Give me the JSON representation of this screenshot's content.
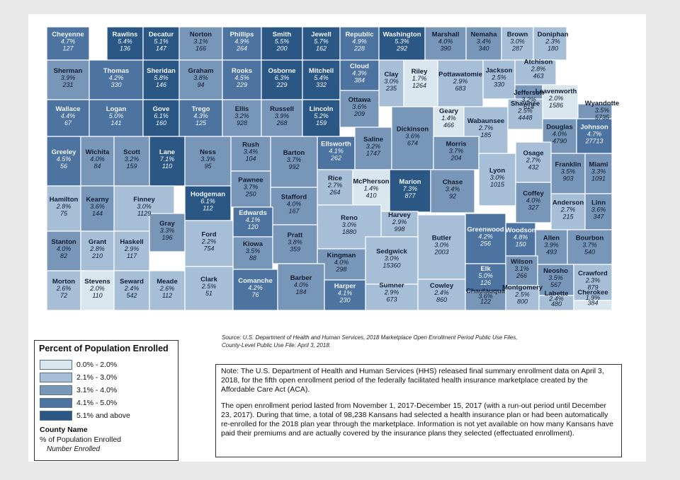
{
  "legend": {
    "title": "Percent of Population Enrolled",
    "bins": [
      {
        "label": "0.0% - 2.0%",
        "color": "#d9e6ee"
      },
      {
        "label": "2.1% - 3.0%",
        "color": "#a6bfd6"
      },
      {
        "label": "3.1% - 4.0%",
        "color": "#7896b7"
      },
      {
        "label": "4.1% - 5.0%",
        "color": "#4d73a0"
      },
      {
        "label": "5.1% and above",
        "color": "#2b5785"
      }
    ],
    "key_title": "County Name",
    "key_pct": "% of Population Enrolled",
    "key_num": "Number Enrolled"
  },
  "source": [
    "Source: U.S. Department of Health and Human Services, 2018 Marketplace Open Enrollment Period Public Use Files,",
    "County-Level Public Use File: April 3, 2018."
  ],
  "note": [
    "Note: The U.S. Department of Health and Human Services (HHS) released final summary enrollment data on April 3, 2018, for the fifth open enrollment period of the federally facilitated health insurance marketplace created by the Affordable Care Act (ACA).",
    "The open enrollment period lasted from November 1, 2017-December 15, 2017 (with a run-out period until December 23, 2017). During that time, a total of 98,238 Kansans had selected a health insurance plan or had been automatically re-enrolled for the 2018 plan year through the marketplace. Information is not yet available on how many Kansans have paid their premiums and are actually covered by the insurance plans they selected (effectuated enrollment)."
  ],
  "counties": [
    {
      "name": "Cheyenne",
      "pct": "4.7%",
      "n": "127",
      "bin": 3
    },
    {
      "name": "Rawlins",
      "pct": "5.4%",
      "n": "136",
      "bin": 4
    },
    {
      "name": "Decatur",
      "pct": "5.1%",
      "n": "147",
      "bin": 4
    },
    {
      "name": "Norton",
      "pct": "3.1%",
      "n": "166",
      "bin": 2
    },
    {
      "name": "Phillips",
      "pct": "4.9%",
      "n": "264",
      "bin": 3
    },
    {
      "name": "Smith",
      "pct": "5.5%",
      "n": "200",
      "bin": 4
    },
    {
      "name": "Jewell",
      "pct": "5.7%",
      "n": "162",
      "bin": 4
    },
    {
      "name": "Republic",
      "pct": "4.9%",
      "n": "228",
      "bin": 3
    },
    {
      "name": "Washington",
      "pct": "5.3%",
      "n": "292",
      "bin": 4
    },
    {
      "name": "Marshall",
      "pct": "4.0%",
      "n": "390",
      "bin": 2
    },
    {
      "name": "Nemaha",
      "pct": "3.4%",
      "n": "340",
      "bin": 2
    },
    {
      "name": "Brown",
      "pct": "3.0%",
      "n": "287",
      "bin": 1
    },
    {
      "name": "Doniphan",
      "pct": "2.3%",
      "n": "180",
      "bin": 1
    },
    {
      "name": "Sherman",
      "pct": "3.9%",
      "n": "231",
      "bin": 2
    },
    {
      "name": "Thomas",
      "pct": "4.2%",
      "n": "330",
      "bin": 3
    },
    {
      "name": "Sheridan",
      "pct": "5.8%",
      "n": "146",
      "bin": 4
    },
    {
      "name": "Graham",
      "pct": "3.8%",
      "n": "94",
      "bin": 2
    },
    {
      "name": "Rooks",
      "pct": "4.5%",
      "n": "229",
      "bin": 3
    },
    {
      "name": "Osborne",
      "pct": "6.3%",
      "n": "229",
      "bin": 4
    },
    {
      "name": "Mitchell",
      "pct": "5.4%",
      "n": "332",
      "bin": 4
    },
    {
      "name": "Cloud",
      "pct": "4.3%",
      "n": "384",
      "bin": 3
    },
    {
      "name": "Clay",
      "pct": "3.0%",
      "n": "235",
      "bin": 1
    },
    {
      "name": "Riley",
      "pct": "1.7%",
      "n": "1264",
      "bin": 0
    },
    {
      "name": "Pottawatomie",
      "pct": "2.9%",
      "n": "683",
      "bin": 1
    },
    {
      "name": "Jackson",
      "pct": "2.5%",
      "n": "330",
      "bin": 1
    },
    {
      "name": "Atchison",
      "pct": "2.8%",
      "n": "463",
      "bin": 1
    },
    {
      "name": "Jefferson",
      "pct": "3.2%",
      "n": "614",
      "bin": 2
    },
    {
      "name": "Leavenworth",
      "pct": "2.0%",
      "n": "1586",
      "bin": 0
    },
    {
      "name": "Wyandotte",
      "pct": "3.5%",
      "n": "5735",
      "bin": 2
    },
    {
      "name": "Wallace",
      "pct": "4.4%",
      "n": "67",
      "bin": 3
    },
    {
      "name": "Logan",
      "pct": "5.0%",
      "n": "141",
      "bin": 3
    },
    {
      "name": "Gove",
      "pct": "6.1%",
      "n": "160",
      "bin": 4
    },
    {
      "name": "Trego",
      "pct": "4.3%",
      "n": "125",
      "bin": 3
    },
    {
      "name": "Ellis",
      "pct": "3.2%",
      "n": "928",
      "bin": 2
    },
    {
      "name": "Russell",
      "pct": "3.9%",
      "n": "268",
      "bin": 2
    },
    {
      "name": "Lincoln",
      "pct": "5.2%",
      "n": "159",
      "bin": 4
    },
    {
      "name": "Ottawa",
      "pct": "3.6%",
      "n": "209",
      "bin": 2
    },
    {
      "name": "Geary",
      "pct": "1.4%",
      "n": "466",
      "bin": 0
    },
    {
      "name": "Wabaunsee",
      "pct": "2.7%",
      "n": "185",
      "bin": 1
    },
    {
      "name": "Shawnee",
      "pct": "2.5%",
      "n": "4448",
      "bin": 1
    },
    {
      "name": "Douglas",
      "pct": "4.0%",
      "n": "4790",
      "bin": 2
    },
    {
      "name": "Johnson",
      "pct": "4.7%",
      "n": "27713",
      "bin": 3
    },
    {
      "name": "Greeley",
      "pct": "4.5%",
      "n": "56",
      "bin": 3
    },
    {
      "name": "Wichita",
      "pct": "4.0%",
      "n": "84",
      "bin": 2
    },
    {
      "name": "Scott",
      "pct": "3.2%",
      "n": "159",
      "bin": 2
    },
    {
      "name": "Lane",
      "pct": "7.1%",
      "n": "110",
      "bin": 4
    },
    {
      "name": "Ness",
      "pct": "3.3%",
      "n": "95",
      "bin": 2
    },
    {
      "name": "Rush",
      "pct": "3.4%",
      "n": "104",
      "bin": 2
    },
    {
      "name": "Barton",
      "pct": "3.7%",
      "n": "992",
      "bin": 2
    },
    {
      "name": "Ellsworth",
      "pct": "4.1%",
      "n": "262",
      "bin": 3
    },
    {
      "name": "Saline",
      "pct": "3.2%",
      "n": "1747",
      "bin": 2
    },
    {
      "name": "Dickinson",
      "pct": "3.6%",
      "n": "674",
      "bin": 2
    },
    {
      "name": "Morris",
      "pct": "3.7%",
      "n": "204",
      "bin": 2
    },
    {
      "name": "Lyon",
      "pct": "3.0%",
      "n": "1015",
      "bin": 1
    },
    {
      "name": "Osage",
      "pct": "2.7%",
      "n": "432",
      "bin": 1
    },
    {
      "name": "Franklin",
      "pct": "3.5%",
      "n": "903",
      "bin": 2
    },
    {
      "name": "Miami",
      "pct": "3.3%",
      "n": "1091",
      "bin": 2
    },
    {
      "name": "Hamilton",
      "pct": "2.8%",
      "n": "75",
      "bin": 1
    },
    {
      "name": "Kearny",
      "pct": "3.6%",
      "n": "144",
      "bin": 2
    },
    {
      "name": "Finney",
      "pct": "3.0%",
      "n": "1129",
      "bin": 1
    },
    {
      "name": "Hodgeman",
      "pct": "6.1%",
      "n": "112",
      "bin": 4
    },
    {
      "name": "Pawnee",
      "pct": "3.7%",
      "n": "250",
      "bin": 2
    },
    {
      "name": "Stafford",
      "pct": "4.0%",
      "n": "167",
      "bin": 2
    },
    {
      "name": "Rice",
      "pct": "2.7%",
      "n": "264",
      "bin": 1
    },
    {
      "name": "McPherson",
      "pct": "1.4%",
      "n": "410",
      "bin": 0
    },
    {
      "name": "Marion",
      "pct": "7.3%",
      "n": "877",
      "bin": 4
    },
    {
      "name": "Chase",
      "pct": "3.4%",
      "n": "92",
      "bin": 2
    },
    {
      "name": "Coffey",
      "pct": "4.0%",
      "n": "327",
      "bin": 2
    },
    {
      "name": "Anderson",
      "pct": "2.7%",
      "n": "215",
      "bin": 1
    },
    {
      "name": "Linn",
      "pct": "3.6%",
      "n": "347",
      "bin": 2
    },
    {
      "name": "Gray",
      "pct": "3.3%",
      "n": "196",
      "bin": 2
    },
    {
      "name": "Ford",
      "pct": "2.2%",
      "n": "754",
      "bin": 1
    },
    {
      "name": "Edwards",
      "pct": "4.1%",
      "n": "120",
      "bin": 3
    },
    {
      "name": "Harvey",
      "pct": "2.9%",
      "n": "998",
      "bin": 1
    },
    {
      "name": "Reno",
      "pct": "3.0%",
      "n": "1880",
      "bin": 1
    },
    {
      "name": "Butler",
      "pct": "3.0%",
      "n": "2003",
      "bin": 1
    },
    {
      "name": "Greenwood",
      "pct": "4.2%",
      "n": "256",
      "bin": 3
    },
    {
      "name": "Woodson",
      "pct": "4.8%",
      "n": "150",
      "bin": 3
    },
    {
      "name": "Allen",
      "pct": "3.9%",
      "n": "493",
      "bin": 2
    },
    {
      "name": "Bourbon",
      "pct": "3.7%",
      "n": "540",
      "bin": 2
    },
    {
      "name": "Stanton",
      "pct": "4.0%",
      "n": "82",
      "bin": 2
    },
    {
      "name": "Grant",
      "pct": "2.8%",
      "n": "210",
      "bin": 1
    },
    {
      "name": "Haskell",
      "pct": "2.9%",
      "n": "117",
      "bin": 1
    },
    {
      "name": "Kiowa",
      "pct": "3.5%",
      "n": "88",
      "bin": 2
    },
    {
      "name": "Pratt",
      "pct": "3.8%",
      "n": "359",
      "bin": 2
    },
    {
      "name": "Kingman",
      "pct": "4.0%",
      "n": "298",
      "bin": 2
    },
    {
      "name": "Sedgwick",
      "pct": "3.0%",
      "n": "15360",
      "bin": 1
    },
    {
      "name": "Wilson",
      "pct": "3.1%",
      "n": "266",
      "bin": 2
    },
    {
      "name": "Neosho",
      "pct": "3.5%",
      "n": "567",
      "bin": 2
    },
    {
      "name": "Crawford",
      "pct": "2.3%",
      "n": "879",
      "bin": 1
    },
    {
      "name": "Morton",
      "pct": "2.6%",
      "n": "72",
      "bin": 1
    },
    {
      "name": "Stevens",
      "pct": "2.0%",
      "n": "110",
      "bin": 0
    },
    {
      "name": "Seward",
      "pct": "2.4%",
      "n": "542",
      "bin": 1
    },
    {
      "name": "Meade",
      "pct": "2.6%",
      "n": "112",
      "bin": 1
    },
    {
      "name": "Clark",
      "pct": "2.5%",
      "n": "51",
      "bin": 1
    },
    {
      "name": "Comanche",
      "pct": "4.2%",
      "n": "76",
      "bin": 3
    },
    {
      "name": "Barber",
      "pct": "4.0%",
      "n": "184",
      "bin": 2
    },
    {
      "name": "Harper",
      "pct": "4.1%",
      "n": "230",
      "bin": 3
    },
    {
      "name": "Sumner",
      "pct": "2.9%",
      "n": "673",
      "bin": 1
    },
    {
      "name": "Cowley",
      "pct": "2.4%",
      "n": "860",
      "bin": 1
    },
    {
      "name": "Elk",
      "pct": "5.0%",
      "n": "126",
      "bin": 3
    },
    {
      "name": "Chautauqua",
      "pct": "3.6%",
      "n": "122",
      "bin": 2
    },
    {
      "name": "Montgomery",
      "pct": "2.5%",
      "n": "800",
      "bin": 1
    },
    {
      "name": "Labette",
      "pct": "2.4%",
      "n": "480",
      "bin": 1
    },
    {
      "name": "Cherokee",
      "pct": "1.9%",
      "n": "384",
      "bin": 0
    }
  ]
}
